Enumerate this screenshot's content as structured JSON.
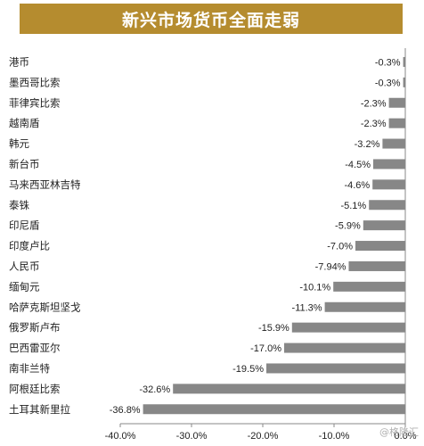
{
  "title": "新兴市场货币全面走弱",
  "watermark": "@格隆汇",
  "chart_data": {
    "type": "bar",
    "orientation": "horizontal",
    "title": "新兴市场货币全面走弱",
    "categories": [
      "港币",
      "墨西哥比索",
      "菲律宾比索",
      "越南盾",
      "韩元",
      "新台币",
      "马来西亚林吉特",
      "泰铢",
      "印尼盾",
      "印度卢比",
      "人民币",
      "缅甸元",
      "哈萨克斯坦坚戈",
      "俄罗斯卢布",
      "巴西雷亚尔",
      "南非兰特",
      "阿根廷比索",
      "土耳其新里拉"
    ],
    "values": [
      -0.3,
      -0.3,
      -2.3,
      -2.3,
      -3.2,
      -4.5,
      -4.6,
      -5.1,
      -5.9,
      -7.0,
      -7.94,
      -10.1,
      -11.3,
      -15.9,
      -17.0,
      -19.5,
      -32.6,
      -36.8
    ],
    "value_labels": [
      "-0.3%",
      "-0.3%",
      "-2.3%",
      "-2.3%",
      "-3.2%",
      "-4.5%",
      "-4.6%",
      "-5.1%",
      "-5.9%",
      "-7.0%",
      "-7.94%",
      "-10.1%",
      "-11.3%",
      "-15.9%",
      "-17.0%",
      "-19.5%",
      "-32.6%",
      "-36.8%"
    ],
    "xlim": [
      -40,
      0
    ],
    "xticks": [
      "-40.0%",
      "-30.0%",
      "-20.0%",
      "-10.0%",
      "0.0%"
    ],
    "bar_color": "#878787",
    "grid": false
  }
}
